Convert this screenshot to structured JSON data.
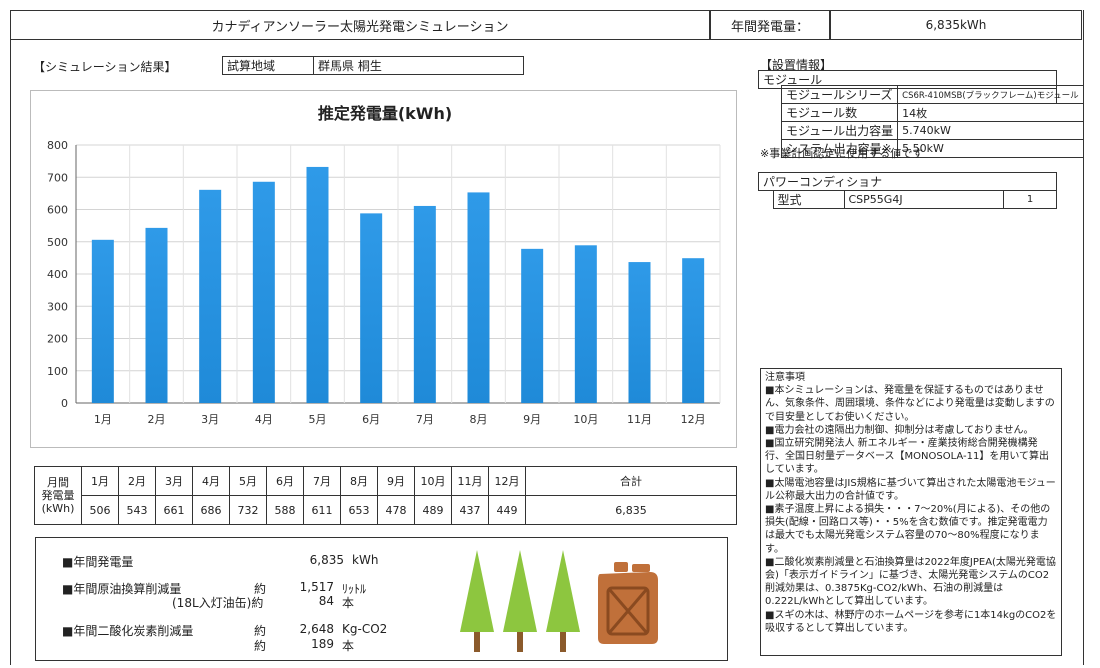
{
  "header": {
    "title": "カナディアンソーラー太陽光発電シミュレーション",
    "annual_label": "年間発電量：",
    "annual_value": "6,835kWh"
  },
  "result": {
    "label": "【シミュレーション結果】",
    "area_label": "試算地域",
    "area_value": "群馬県 桐生"
  },
  "setup": {
    "label": "【設置情報】",
    "module_title": "モジュール",
    "rows": [
      {
        "k": "モジュールシリーズ",
        "v": "CS6R-410MSB(ブラックフレーム)モジュール"
      },
      {
        "k": "モジュール数",
        "v": "14枚"
      },
      {
        "k": "モジュール出力容量",
        "v": "5.740kW"
      },
      {
        "k": "システム出力容量※",
        "v": "5.50kW"
      }
    ],
    "note": "※事業計画認定に使用する値です",
    "pcs_title": "パワーコンディショナ",
    "pcs_label": "型式",
    "pcs_model": "CSP55G4J",
    "pcs_count": "1"
  },
  "chart_data": {
    "type": "bar",
    "title": "推定発電量(kWh)",
    "categories": [
      "1月",
      "2月",
      "3月",
      "4月",
      "5月",
      "6月",
      "7月",
      "8月",
      "9月",
      "10月",
      "11月",
      "12月"
    ],
    "values": [
      506,
      543,
      661,
      686,
      732,
      588,
      611,
      653,
      478,
      489,
      437,
      449
    ],
    "ylim": [
      0,
      800
    ],
    "yticks": [
      "0",
      "100",
      "200",
      "300",
      "400",
      "500",
      "600",
      "700",
      "800"
    ],
    "grid": true,
    "bar_color": "#1f8ad8"
  },
  "monthly_table": {
    "header_label": "月間発電量(kWh)",
    "header_lines": [
      "月間",
      "発電量",
      "(kWh)"
    ],
    "months": [
      "1月",
      "2月",
      "3月",
      "4月",
      "5月",
      "6月",
      "7月",
      "8月",
      "9月",
      "10月",
      "11月",
      "12月"
    ],
    "values": [
      "506",
      "543",
      "661",
      "686",
      "732",
      "588",
      "611",
      "653",
      "478",
      "489",
      "437",
      "449"
    ],
    "total_label": "合計",
    "total_value": "6,835"
  },
  "summary": {
    "r1_label": "■年間発電量",
    "r1_value": "6,835",
    "r1_unit": "kWh",
    "r2_label": "■年間原油換算削減量",
    "r2_approx": "約",
    "r2_value": "1,517",
    "r2_unit": "ﾘｯﾄﾙ",
    "r3_label": "(18L入灯油缶)約",
    "r3_value": "84",
    "r3_unit": "本",
    "r4_label": "■年間二酸化炭素削減量",
    "r4_approx": "約",
    "r4_value": "2,648",
    "r4_unit": "Kg-CO2",
    "r5_approx": "約",
    "r5_value": "189",
    "r5_unit": "本"
  },
  "notes": {
    "title": "注意事項",
    "items": [
      "■本シミュレーションは、発電量を保証するものではありません、気象条件、周囲環境、条件などにより発電量は変動しますので目安量としてお使いください。",
      "■電力会社の遠隔出力制御、抑制分は考慮しておりません。",
      "■国立研究開発法人 新エネルギー・産業技術総合開発機構発行、全国日射量データベース【MONOSOLA-11】を用いて算出しています。",
      "■太陽電池容量はJIS規格に基づいて算出された太陽電池モジュール公称最大出力の合計値です。",
      "■素子温度上昇による損失・・・7～20%(月による)、その他の損失(配線・回路ロス等)・・5%を含む数値です。推定発電電力は最大でも太陽光発電システム容量の70～80%程度になります。",
      "■二酸化炭素削減量と石油換算量は2022年度JPEA(太陽光発電協会)「表示ガイドライン」に基づき、太陽光発電システムのCO2削減効果は、0.3875Kg-CO2/kWh、石油の削減量は0.222L/kWhとして算出しています。",
      "■スギの木は、林野庁のホームページを参考に1本14kgのCO2を吸収するとして算出しています。"
    ]
  },
  "colors": {
    "tree": "#8dc63f",
    "trunk": "#8b5a2b",
    "can": "#c0703a"
  }
}
